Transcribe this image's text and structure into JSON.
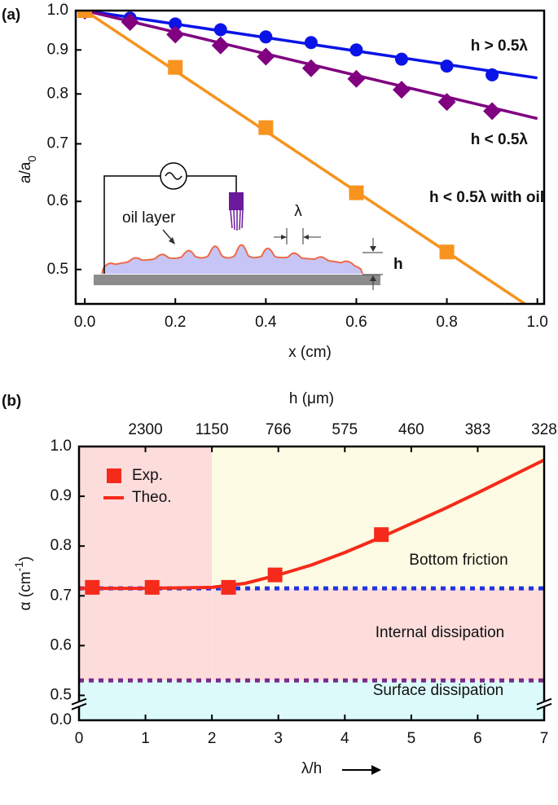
{
  "chart_data": [
    {
      "type": "line",
      "panel_label": "(a)",
      "xlabel": "x (cm)",
      "ylabel": [
        "a/a",
        "0"
      ],
      "log_y": true,
      "xlim": [
        -0.02,
        1.015
      ],
      "ylim": [
        0.456,
        1.0
      ],
      "xticks": [
        {
          "value": 0,
          "label": "0.0"
        },
        0.2,
        0.4,
        0.6,
        0.8,
        {
          "value": 1,
          "label": "1.0"
        }
      ],
      "yticks": [
        0.5,
        0.6,
        0.7,
        0.8,
        0.9,
        {
          "value": 1,
          "label": "1.0"
        }
      ],
      "fit_x": [
        0,
        1
      ],
      "series": [
        {
          "name": "h > 0.5λ",
          "color": "#0a14e6",
          "marker": "circle",
          "x": [
            0,
            0.1,
            0.2,
            0.3,
            0.4,
            0.5,
            0.6,
            0.7,
            0.8,
            0.9
          ],
          "values": [
            1.0,
            0.98,
            0.965,
            0.95,
            0.932,
            0.918,
            0.9,
            0.878,
            0.862,
            0.842
          ],
          "fit": [
            1.0,
            0.835
          ]
        },
        {
          "name": "h < 0.5λ",
          "color": "#800080",
          "marker": "diamond",
          "x": [
            0,
            0.1,
            0.2,
            0.3,
            0.4,
            0.5,
            0.6,
            0.7,
            0.8,
            0.9
          ],
          "values": [
            1.0,
            0.97,
            0.938,
            0.911,
            0.884,
            0.857,
            0.833,
            0.809,
            0.783,
            0.764
          ],
          "fit": [
            1.0,
            0.749
          ]
        },
        {
          "name": "h < 0.5λ with oil",
          "color": "#f7931e",
          "marker": "square",
          "x": [
            0,
            0.2,
            0.4,
            0.6,
            0.8
          ],
          "values": [
            1.0,
            0.859,
            0.731,
            0.614,
            0.524
          ],
          "fit": [
            1.0,
            0.446
          ]
        }
      ],
      "inset": {
        "labels": [
          "oil layer",
          "λ",
          "h"
        ]
      }
    },
    {
      "type": "line",
      "panel_label": "(b)",
      "xlabel": "λ/h",
      "x2label": "h (μm)",
      "ylabel": [
        "α (cm",
        "-1",
        ")"
      ],
      "xlim": [
        0,
        7
      ],
      "ylim": [
        0,
        1.0
      ],
      "ybreak": [
        0.03,
        0.48
      ],
      "xticks": [
        0,
        1,
        2,
        3,
        4,
        5,
        6,
        7
      ],
      "x2ticks": [
        {
          "value": 1,
          "label": "2300"
        },
        {
          "value": 2,
          "label": "1150"
        },
        {
          "value": 3,
          "label": "766"
        },
        {
          "value": 4,
          "label": "575"
        },
        {
          "value": 5,
          "label": "460"
        },
        {
          "value": 6,
          "label": "383"
        },
        {
          "value": 7,
          "label": "328"
        }
      ],
      "yticks": [
        {
          "value": 0,
          "label": "0.0"
        },
        0.5,
        0.6,
        0.7,
        0.8,
        0.9,
        {
          "value": 1,
          "label": "1.0"
        }
      ],
      "x_split": 2,
      "levels": [
        {
          "value": 0.715,
          "color": "#2233dd"
        },
        {
          "value": 0.53,
          "color": "#7a2a8a"
        }
      ],
      "region_labels": [
        "Bottom friction",
        "Internal dissipation",
        "Surface dissipation"
      ],
      "region_colors": [
        "#fdfbe3",
        "#fddcdc",
        "#dcfafa"
      ],
      "legend": "upper left",
      "series": [
        {
          "name": "Exp.",
          "color": "#f52a1a",
          "marker": "square",
          "x": [
            0.2,
            1.1,
            2.25,
            2.95,
            4.55
          ],
          "values": [
            0.717,
            0.717,
            0.717,
            0.742,
            0.823
          ]
        },
        {
          "name": "Theo.",
          "color": "#f52a1a",
          "marker": "none",
          "x": [
            0,
            1,
            2,
            2.5,
            3,
            3.5,
            4,
            4.5,
            5,
            5.5,
            6,
            6.5,
            7
          ],
          "values": [
            0.715,
            0.715,
            0.717,
            0.725,
            0.742,
            0.762,
            0.787,
            0.815,
            0.845,
            0.875,
            0.907,
            0.94,
            0.973
          ]
        }
      ]
    }
  ]
}
